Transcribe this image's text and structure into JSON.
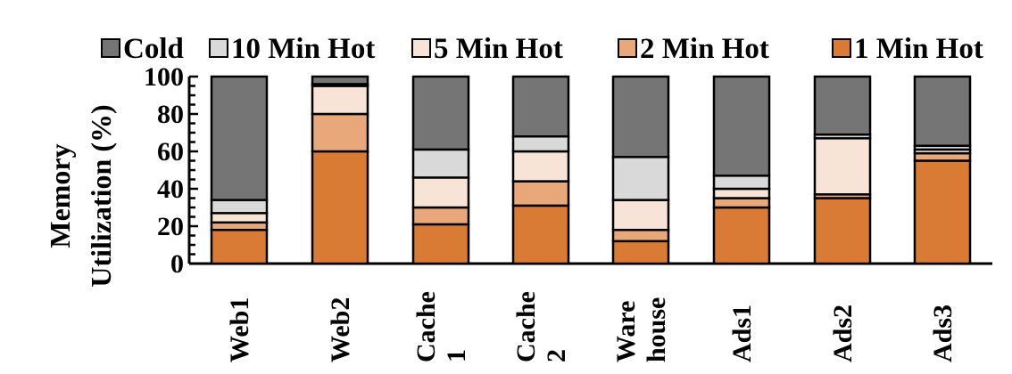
{
  "chart_data": {
    "type": "bar",
    "stacked": true,
    "ylabel_lines": [
      "Memory",
      "Utilization (%)"
    ],
    "ylim": [
      0,
      100
    ],
    "yticks": [
      0,
      20,
      40,
      60,
      80,
      100
    ],
    "ytick_labels": [
      "0",
      "20",
      "40",
      "60",
      "80",
      "100"
    ],
    "categories": [
      [
        "Web1"
      ],
      [
        "Web2"
      ],
      [
        "Cache",
        "1"
      ],
      [
        "Cache",
        "2"
      ],
      [
        "Ware",
        "house"
      ],
      [
        "Ads1"
      ],
      [
        "Ads2"
      ],
      [
        "Ads3"
      ]
    ],
    "legend_position": "top",
    "series": [
      {
        "name": "1 Min Hot",
        "color": "#d97a35",
        "values": [
          18,
          60,
          21,
          31,
          12,
          30,
          35,
          55
        ]
      },
      {
        "name": "2 Min Hot",
        "color": "#e8a87a",
        "values": [
          4,
          20,
          9,
          13,
          6,
          5,
          2,
          4
        ]
      },
      {
        "name": "5 Min Hot",
        "color": "#f8e4d6",
        "values": [
          5,
          15,
          16,
          16,
          16,
          5,
          30,
          2
        ]
      },
      {
        "name": "10 Min Hot",
        "color": "#d9d9d9",
        "values": [
          7,
          1,
          15,
          8,
          23,
          7,
          2,
          2
        ]
      },
      {
        "name": "Cold",
        "color": "#757575",
        "values": [
          66,
          4,
          39,
          32,
          43,
          53,
          31,
          37
        ]
      }
    ],
    "legend_order": [
      "Cold",
      "10 Min Hot",
      "5 Min Hot",
      "2 Min Hot",
      "1 Min Hot"
    ],
    "grid": false
  }
}
